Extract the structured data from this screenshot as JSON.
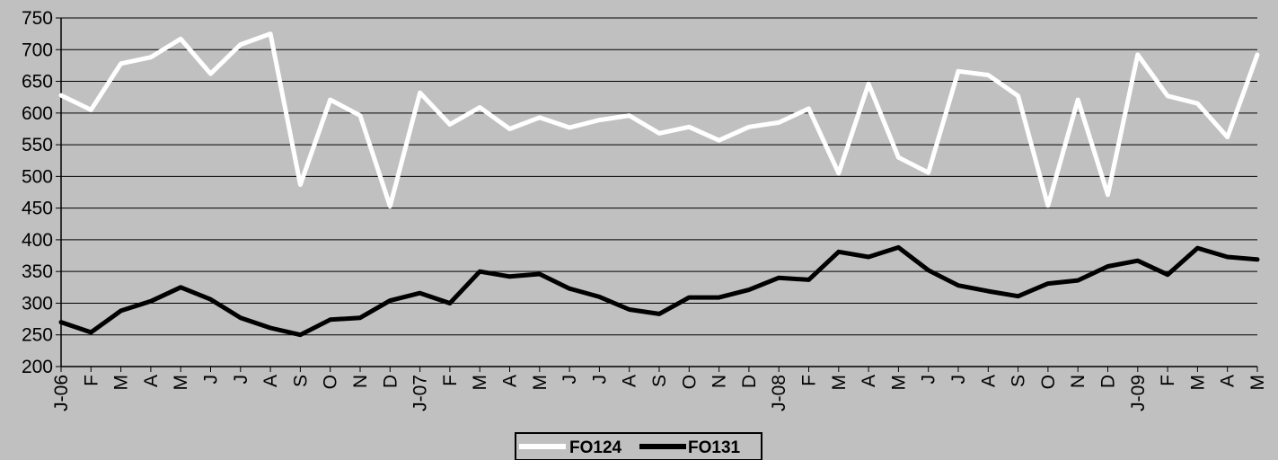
{
  "chart_data": {
    "type": "line",
    "title": "",
    "xlabel": "",
    "ylabel": "",
    "ylim": [
      200,
      750
    ],
    "yticks": [
      200,
      250,
      300,
      350,
      400,
      450,
      500,
      550,
      600,
      650,
      700,
      750
    ],
    "grid": "horizontal",
    "legend": "bottom-center",
    "background": "#c0c0c0",
    "categories": [
      "J-06",
      "F",
      "M",
      "A",
      "M",
      "J",
      "J",
      "A",
      "S",
      "O",
      "N",
      "D",
      "J-07",
      "F",
      "M",
      "A",
      "M",
      "J",
      "J",
      "A",
      "S",
      "O",
      "N",
      "D",
      "J-08",
      "F",
      "M",
      "A",
      "M",
      "J",
      "J",
      "A",
      "S",
      "O",
      "N",
      "D",
      "J-09",
      "F",
      "M",
      "A",
      "M"
    ],
    "series": [
      {
        "name": "FO124",
        "color": "#ffffff",
        "values": [
          628,
          605,
          678,
          688,
          717,
          662,
          708,
          725,
          487,
          621,
          596,
          453,
          632,
          582,
          609,
          575,
          593,
          577,
          589,
          596,
          568,
          578,
          557,
          578,
          585,
          607,
          505,
          646,
          530,
          506,
          666,
          660,
          627,
          454,
          621,
          471,
          692,
          627,
          615,
          562,
          692
        ]
      },
      {
        "name": "FO131",
        "color": "#000000",
        "values": [
          270,
          254,
          288,
          303,
          325,
          306,
          277,
          261,
          250,
          274,
          277,
          304,
          316,
          300,
          350,
          342,
          346,
          323,
          310,
          290,
          283,
          309,
          309,
          321,
          340,
          337,
          381,
          373,
          388,
          352,
          328,
          319,
          311,
          331,
          336,
          358,
          367,
          345,
          387,
          373,
          369
        ]
      }
    ]
  }
}
